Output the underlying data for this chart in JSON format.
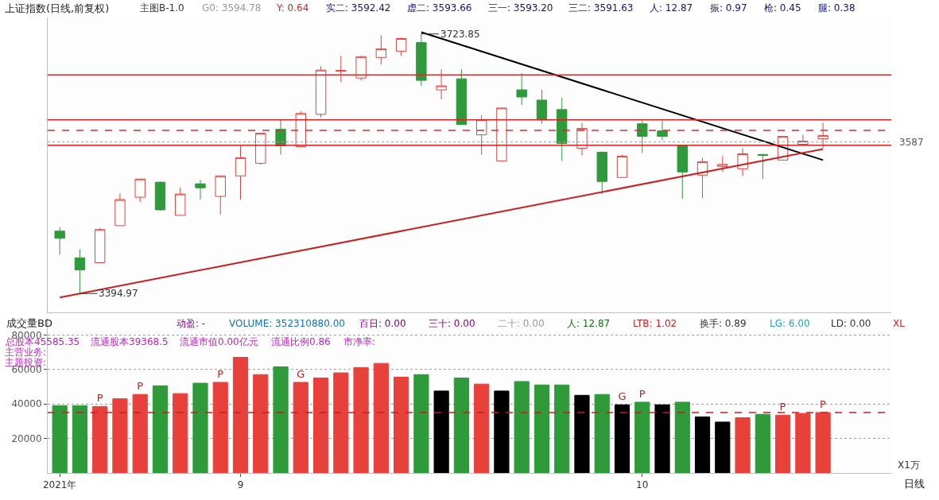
{
  "chart_data": [
    {
      "type": "candlestick",
      "title": "上证指数(日线,前复权)",
      "subtitle": "主图B-1.0",
      "categories": [
        null,
        null,
        null,
        null,
        null,
        null,
        null,
        null,
        null,
        null,
        null,
        null,
        null,
        null,
        null,
        null,
        null,
        null,
        null,
        null,
        null,
        null,
        null,
        null,
        null,
        null,
        null,
        null,
        null,
        null,
        null,
        null,
        null,
        null,
        null,
        null,
        null,
        null,
        null
      ],
      "ohlc": [
        [
          3474,
          3479,
          3444,
          3465
        ],
        [
          3440,
          3451,
          3394.97,
          3425
        ],
        [
          3434,
          3478,
          3434,
          3476
        ],
        [
          3481,
          3522,
          3481,
          3514
        ],
        [
          3517,
          3540,
          3511,
          3540
        ],
        [
          3536,
          3537,
          3500,
          3501
        ],
        [
          3494,
          3529,
          3494,
          3521
        ],
        [
          3534,
          3539,
          3514,
          3529
        ],
        [
          3518,
          3544,
          3495,
          3544
        ],
        [
          3544,
          3582,
          3514,
          3567
        ],
        [
          3560,
          3598,
          3558,
          3598
        ],
        [
          3603,
          3615,
          3571,
          3582
        ],
        [
          3581,
          3626,
          3581,
          3623
        ],
        [
          3622,
          3683,
          3618,
          3678
        ],
        [
          3676.5,
          3696,
          3663,
          3677.5
        ],
        [
          3668,
          3696,
          3665,
          3695
        ],
        [
          3694,
          3722,
          3685,
          3705
        ],
        [
          3702,
          3719,
          3696,
          3718
        ],
        [
          3713,
          3723.85,
          3658,
          3665
        ],
        [
          3653,
          3679,
          3641,
          3658
        ],
        [
          3667,
          3679,
          3609,
          3609
        ],
        [
          3596,
          3621,
          3571,
          3615
        ],
        [
          3563,
          3630,
          3563,
          3630
        ],
        [
          3653,
          3674,
          3634,
          3644
        ],
        [
          3640,
          3653,
          3610,
          3615
        ],
        [
          3628,
          3643,
          3563,
          3585
        ],
        [
          3579,
          3611,
          3570,
          3604
        ],
        [
          3574,
          3575,
          3521,
          3537
        ],
        [
          3542,
          3571,
          3542,
          3569
        ],
        [
          3610,
          3614,
          3573,
          3594
        ],
        [
          3601,
          3614,
          3589,
          3594
        ],
        [
          3582,
          3583,
          3515,
          3549
        ],
        [
          3545,
          3567,
          3516,
          3562
        ],
        [
          3556,
          3569,
          3549,
          3558.5
        ],
        [
          3553,
          3579,
          3544,
          3572
        ],
        [
          3571,
          3572,
          3540,
          3570
        ],
        [
          3564,
          3594,
          3564,
          3594
        ],
        [
          3584,
          3596,
          3582,
          3588
        ],
        [
          3591,
          3611,
          3579,
          3595
        ]
      ],
      "series": [
        {
          "type": "line",
          "color": "#000000",
          "values": [
            null,
            null,
            null,
            null,
            null,
            null,
            null,
            null,
            null,
            null,
            null,
            null,
            null,
            null,
            null,
            null,
            null,
            null,
            3726,
            null,
            null,
            null,
            null,
            null,
            null,
            null,
            null,
            null,
            null,
            null,
            null,
            null,
            null,
            null,
            null,
            null,
            null,
            null,
            3564
          ]
        },
        {
          "type": "line",
          "color": "#c8201e",
          "values": [
            3390,
            null,
            null,
            null,
            null,
            null,
            null,
            null,
            null,
            null,
            null,
            null,
            null,
            null,
            null,
            null,
            null,
            null,
            null,
            null,
            null,
            null,
            null,
            null,
            null,
            null,
            null,
            null,
            null,
            null,
            null,
            null,
            null,
            null,
            null,
            null,
            null,
            null,
            3578
          ]
        }
      ],
      "ref_lines": [
        {
          "axis": "y",
          "value": 3587,
          "label": "3587",
          "color": "#a0a0a0",
          "line_style": "dotted"
        },
        {
          "axis": "y",
          "value": 3671.8,
          "color": "#d03030",
          "line_style": "solid"
        },
        {
          "axis": "y",
          "value": 3614.9,
          "color": "#e02020",
          "line_style": "solid"
        },
        {
          "axis": "y",
          "value": 3601.6,
          "color": "#d03030",
          "line_style": "dashed"
        },
        {
          "axis": "y",
          "value": 3582.7,
          "color": "#e02020",
          "line_style": "solid"
        }
      ],
      "annotations": [
        "G0: 3594.78",
        "Y: 0.64",
        "实二: 3592.42",
        "虚二: 3593.66",
        "三一: 3593.20",
        "三二: 3591.63",
        "人: 12.87",
        "振: 0.97",
        "枪: 0.45",
        "腿: 0.38",
        "3723.85",
        "3394.97"
      ]
    },
    {
      "type": "bar",
      "title": "成交量BD",
      "categories": [
        "2021年",
        null,
        null,
        null,
        null,
        null,
        null,
        null,
        null,
        "9",
        null,
        null,
        null,
        null,
        null,
        null,
        null,
        null,
        null,
        null,
        null,
        null,
        null,
        null,
        null,
        null,
        null,
        null,
        null,
        "10",
        null,
        null,
        null,
        null,
        null,
        null,
        null,
        null,
        null
      ],
      "values": [
        39000,
        39000,
        38500,
        43000,
        45500,
        50500,
        46000,
        52000,
        52500,
        67000,
        57000,
        61500,
        52500,
        55000,
        58000,
        61000,
        63500,
        55500,
        57000,
        47500,
        55000,
        51500,
        47500,
        53000,
        51000,
        51000,
        45000,
        45500,
        39500,
        41000,
        39500,
        41000,
        32500,
        29500,
        32000,
        34000,
        33500,
        34500,
        35000
      ],
      "colors": [
        "#2e9a3a",
        "#2e9a3a",
        "#e8413c",
        "#e8413c",
        "#e8413c",
        "#2e9a3a",
        "#e8413c",
        "#2e9a3a",
        "#e8413c",
        "#e8413c",
        "#e8413c",
        "#2e9a3a",
        "#e8413c",
        "#e8413c",
        "#e8413c",
        "#e8413c",
        "#e8413c",
        "#e8413c",
        "#2e9a3a",
        "#000000",
        "#2e9a3a",
        "#e8413c",
        "#000000",
        "#2e9a3a",
        "#2e9a3a",
        "#2e9a3a",
        "#000000",
        "#2e9a3a",
        "#000000",
        "#2e9a3a",
        "#000000",
        "#2e9a3a",
        "#000000",
        "#000000",
        "#e8413c",
        "#2e9a3a",
        "#e8413c",
        "#e8413c",
        "#e8413c"
      ],
      "value_labels": [
        null,
        null,
        "P",
        null,
        "P",
        null,
        null,
        null,
        "P",
        null,
        null,
        null,
        "G",
        null,
        null,
        null,
        null,
        null,
        null,
        null,
        null,
        null,
        null,
        null,
        null,
        null,
        null,
        null,
        "G",
        "P",
        null,
        null,
        null,
        null,
        null,
        null,
        "P",
        null,
        "P"
      ],
      "ylim": [
        0,
        90000
      ],
      "yticks": [
        20000,
        40000,
        60000,
        80000
      ],
      "grid": "y",
      "ref_lines": [
        {
          "axis": "y",
          "value": 35000,
          "color": "#c02020",
          "line_style": "dashed"
        }
      ],
      "annotations": [
        "动盈: -",
        "VOLUME: 352310880.00",
        "百日: 0.00",
        "三十: 0.00",
        "二十: 0.00",
        "人: 12.87",
        "LTB: 1.02",
        "换手: 0.89",
        "LG: 6.00",
        "LD: 0.00",
        "XL",
        "总股本45585.35",
        "流通股本39368.5",
        "流通市值0.00亿元",
        "流通比例0.86",
        "市净率:",
        "主营业务:",
        "主题投资:",
        "X1万",
        "日线"
      ]
    }
  ]
}
